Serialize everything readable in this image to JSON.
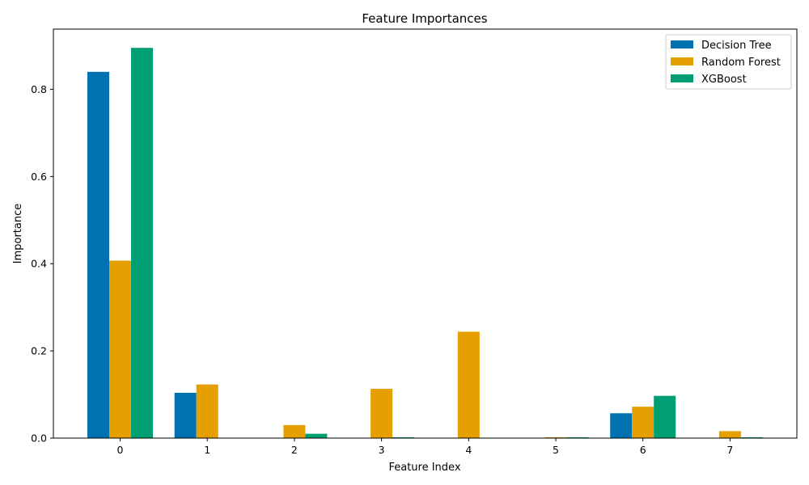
{
  "chart_data": {
    "type": "bar",
    "title": "Feature Importances",
    "xlabel": "Feature Index",
    "ylabel": "Importance",
    "categories": [
      "0",
      "1",
      "2",
      "3",
      "4",
      "5",
      "6",
      "7"
    ],
    "yticks": [
      "0.0",
      "0.2",
      "0.4",
      "0.6",
      "0.8"
    ],
    "ylim": [
      0,
      0.938
    ],
    "grid": false,
    "legend_position": "top-right",
    "series": [
      {
        "name": "Decision Tree",
        "color": "#0072b2",
        "values": [
          0.84,
          0.104,
          0.0,
          0.0,
          0.0,
          0.0,
          0.057,
          0.0
        ]
      },
      {
        "name": "Random Forest",
        "color": "#e69f00",
        "values": [
          0.407,
          0.123,
          0.03,
          0.113,
          0.244,
          0.002,
          0.072,
          0.016
        ]
      },
      {
        "name": "XGBoost",
        "color": "#009e73",
        "values": [
          0.895,
          0.0,
          0.01,
          0.002,
          0.0,
          0.002,
          0.097,
          0.002
        ]
      }
    ]
  }
}
